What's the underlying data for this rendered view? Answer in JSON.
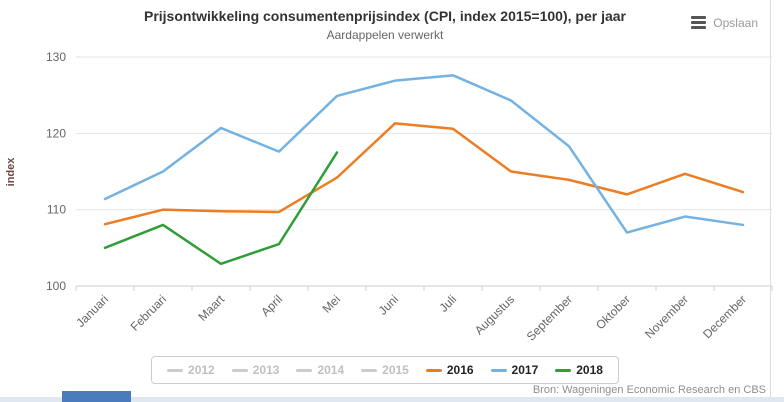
{
  "header": {
    "title": "Prijsontwikkeling consumentenprijsindex (CPI, index 2015=100), per jaar",
    "subtitle": "Aardappelen verwerkt"
  },
  "toolbar": {
    "save_label": "Opslaan"
  },
  "chart_data": {
    "type": "line",
    "title": "Prijsontwikkeling consumentenprijsindex (CPI, index 2015=100), per jaar",
    "subtitle": "Aardappelen verwerkt",
    "categories": [
      "Januari",
      "Februari",
      "Maart",
      "April",
      "Mei",
      "Juni",
      "Juli",
      "Augustus",
      "September",
      "Oktober",
      "November",
      "December"
    ],
    "series": [
      {
        "name": "2012",
        "values": null,
        "color": "#cccccc",
        "active": false
      },
      {
        "name": "2013",
        "values": null,
        "color": "#cccccc",
        "active": false
      },
      {
        "name": "2014",
        "values": null,
        "color": "#cccccc",
        "active": false
      },
      {
        "name": "2015",
        "values": null,
        "color": "#cccccc",
        "active": false
      },
      {
        "name": "2016",
        "values": [
          108.1,
          110.0,
          109.8,
          109.7,
          114.2,
          121.3,
          120.6,
          115.0,
          113.9,
          112.0,
          114.7,
          112.3
        ],
        "color": "#ed7d23",
        "active": true
      },
      {
        "name": "2017",
        "values": [
          111.4,
          115.0,
          120.7,
          117.6,
          124.9,
          126.9,
          127.6,
          124.3,
          118.3,
          107.0,
          109.1,
          108.0
        ],
        "color": "#74b2e2",
        "active": true
      },
      {
        "name": "2018",
        "values": [
          105.0,
          108.0,
          102.9,
          105.5,
          117.5,
          null,
          null,
          null,
          null,
          null,
          null,
          null
        ],
        "color": "#2f9e38",
        "active": true
      }
    ],
    "ylabel": "index",
    "xlabel": "",
    "ylim": [
      100,
      130
    ],
    "yticks": [
      100,
      110,
      120,
      130
    ],
    "grid": true,
    "legend_position": "bottom",
    "colors": {
      "grid": "#e6e6e6",
      "axis": "#cccccc",
      "tick_label": "#666666",
      "ylabel": "#6b4a45",
      "legend_active_text": "#222222",
      "legend_inactive_text": "#c0c0c0"
    }
  },
  "footer": {
    "source": "Bron: Wageningen Economic Research en CBS"
  }
}
